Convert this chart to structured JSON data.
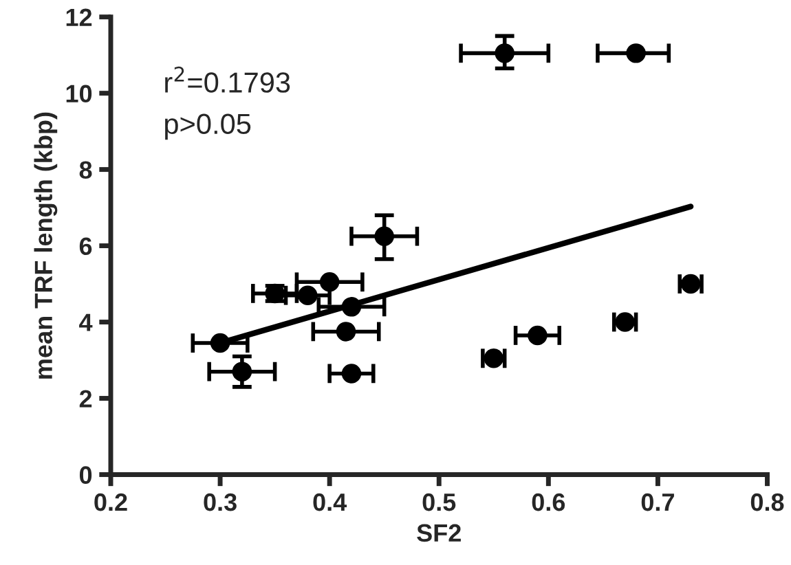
{
  "chart_data": {
    "type": "scatter",
    "xlabel": "SF2",
    "ylabel": "mean TRF length (kbp)",
    "xlim": [
      0.2,
      0.8
    ],
    "xticks": [
      0.2,
      0.3,
      0.4,
      0.5,
      0.6,
      0.7,
      0.8
    ],
    "ylim": [
      0,
      12
    ],
    "yticks": [
      0,
      2,
      4,
      6,
      8,
      10,
      12
    ],
    "grid": false,
    "annotations": [
      "r$^{2}$=0.1793",
      "p>0.05"
    ],
    "series": [
      {
        "color": "#000000",
        "marker": "circle",
        "x": [
          0.56,
          0.68,
          0.45,
          0.4,
          0.35,
          0.38,
          0.42,
          0.3,
          0.32,
          0.415,
          0.42,
          0.55,
          0.59,
          0.67,
          0.73
        ],
        "values": [
          11.05,
          11.05,
          6.25,
          5.05,
          4.75,
          4.7,
          4.4,
          3.45,
          2.7,
          3.75,
          2.65,
          3.05,
          3.65,
          4.0,
          5.0
        ],
        "xerrors": [
          [
            0.52,
            0.6
          ],
          [
            0.645,
            0.71
          ],
          [
            0.42,
            0.48
          ],
          [
            0.37,
            0.43
          ],
          [
            0.33,
            0.37
          ],
          [
            0.36,
            0.4
          ],
          [
            0.39,
            0.45
          ],
          [
            0.275,
            0.325
          ],
          [
            0.29,
            0.35
          ],
          [
            0.385,
            0.445
          ],
          [
            0.4,
            0.44
          ],
          [
            0.54,
            0.56
          ],
          [
            0.57,
            0.61
          ],
          [
            0.66,
            0.68
          ],
          [
            0.72,
            0.74
          ]
        ],
        "errors": [
          [
            10.65,
            11.5
          ],
          null,
          [
            5.65,
            6.8
          ],
          null,
          [
            4.55,
            4.95
          ],
          null,
          null,
          null,
          [
            2.3,
            3.1
          ],
          null,
          null,
          null,
          null,
          null,
          null
        ]
      },
      {
        "type": "line",
        "color": "#000000",
        "x": [
          0.3,
          0.73
        ],
        "values": [
          3.45,
          7.03
        ]
      }
    ]
  }
}
